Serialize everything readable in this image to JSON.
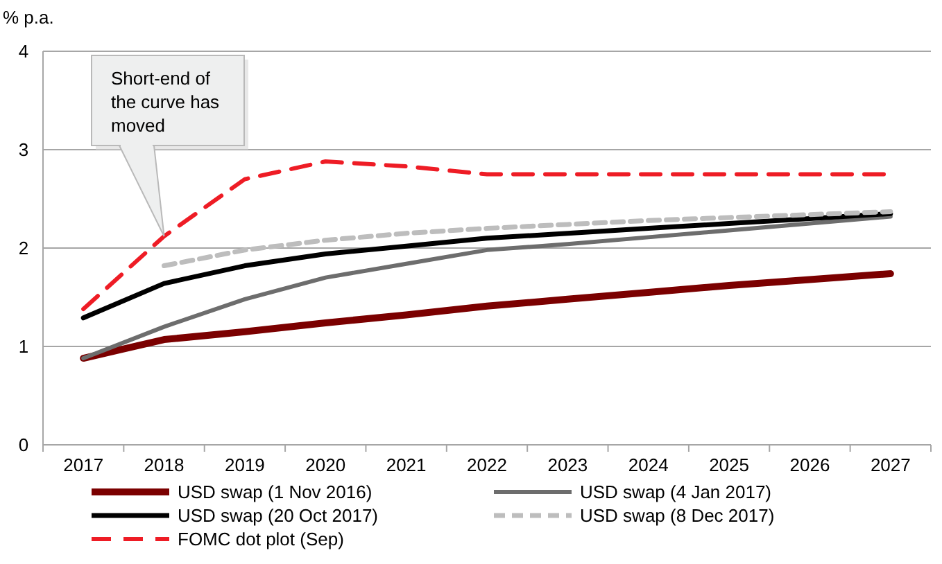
{
  "chart_data": {
    "type": "line",
    "ylabel": "% p.a.",
    "categories": [
      "2017",
      "2018",
      "2019",
      "2020",
      "2021",
      "2022",
      "2023",
      "2024",
      "2025",
      "2026",
      "2027"
    ],
    "ylim": [
      0,
      4
    ],
    "yticks": [
      0,
      1,
      2,
      3,
      4
    ],
    "grid": "y",
    "legend": "bottom",
    "marker": "none",
    "series": [
      {
        "name": "USD swap (1 Nov 2016)",
        "color": "#7b0000",
        "line_style": "solid",
        "values": [
          0.88,
          1.07,
          1.15,
          1.24,
          1.32,
          1.41,
          1.48,
          1.55,
          1.62,
          1.68,
          1.74
        ]
      },
      {
        "name": "USD swap (4 Jan 2017)",
        "color": "#6d6d6d",
        "line_style": "solid",
        "values": [
          0.88,
          1.2,
          1.48,
          1.7,
          1.84,
          1.98,
          2.04,
          2.11,
          2.18,
          2.25,
          2.32
        ]
      },
      {
        "name": "USD swap (20 Oct 2017)",
        "color": "#000000",
        "line_style": "solid",
        "values": [
          1.29,
          1.64,
          1.82,
          1.94,
          2.02,
          2.1,
          2.15,
          2.2,
          2.25,
          2.3,
          2.35
        ]
      },
      {
        "name": "USD swap (8 Dec 2017)",
        "color": "#bdbdbd",
        "line_style": "dashed",
        "values": [
          null,
          1.82,
          1.98,
          2.08,
          2.15,
          2.2,
          2.24,
          2.28,
          2.31,
          2.34,
          2.37
        ]
      },
      {
        "name": "FOMC dot plot (Sep)",
        "color": "#ee1c25",
        "line_style": "dashed",
        "values": [
          1.38,
          2.12,
          2.7,
          2.88,
          2.83,
          2.75,
          2.75,
          2.75,
          2.75,
          2.75,
          2.75
        ]
      }
    ],
    "annotations": [
      {
        "text": "Short-end of the curve has moved",
        "x": "2018",
        "y": 2.12
      }
    ]
  }
}
